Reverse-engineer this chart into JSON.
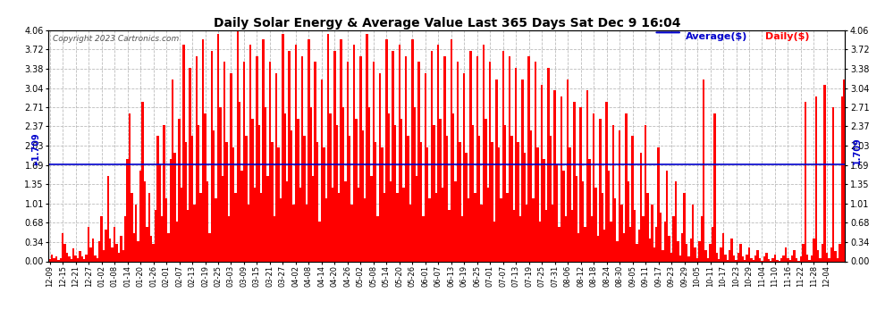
{
  "title": "Daily Solar Energy & Average Value Last 365 Days Sat Dec 9 16:04",
  "copyright": "Copyright 2023 Cartronics.com",
  "average_label": "Average($)",
  "daily_label": "Daily($)",
  "average_value": 1.709,
  "ylim": [
    0.0,
    4.06
  ],
  "yticks": [
    0.0,
    0.34,
    0.68,
    1.01,
    1.35,
    1.69,
    2.03,
    2.37,
    2.71,
    3.04,
    3.38,
    3.72,
    4.06
  ],
  "bar_color": "#ff0000",
  "average_line_color": "#0000cc",
  "background_color": "#ffffff",
  "grid_color": "#bbbbbb",
  "x_labels": [
    "12-09",
    "12-15",
    "12-21",
    "12-27",
    "01-02",
    "01-08",
    "01-14",
    "01-20",
    "01-26",
    "02-01",
    "02-07",
    "02-13",
    "02-19",
    "02-25",
    "03-03",
    "03-09",
    "03-15",
    "03-21",
    "03-27",
    "04-02",
    "04-08",
    "04-14",
    "04-20",
    "04-26",
    "05-02",
    "05-08",
    "05-14",
    "05-20",
    "05-26",
    "06-01",
    "06-07",
    "06-13",
    "06-19",
    "06-25",
    "07-01",
    "07-07",
    "07-13",
    "07-19",
    "07-25",
    "07-31",
    "08-06",
    "08-12",
    "08-18",
    "08-24",
    "08-30",
    "09-05",
    "09-11",
    "09-17",
    "09-23",
    "09-29",
    "10-05",
    "10-11",
    "10-17",
    "10-23",
    "10-29",
    "11-04",
    "11-10",
    "11-16",
    "11-22",
    "11-28",
    "12-04"
  ],
  "x_tick_positions": [
    0,
    6,
    12,
    18,
    24,
    30,
    36,
    42,
    48,
    54,
    60,
    66,
    72,
    78,
    84,
    90,
    96,
    102,
    108,
    114,
    120,
    126,
    132,
    138,
    144,
    150,
    156,
    162,
    168,
    174,
    180,
    186,
    192,
    198,
    204,
    210,
    216,
    222,
    228,
    234,
    240,
    246,
    252,
    258,
    264,
    270,
    276,
    282,
    288,
    294,
    300,
    306,
    312,
    318,
    324,
    330,
    336,
    342,
    348,
    354,
    360
  ],
  "daily_values": [
    0.04,
    0.12,
    0.06,
    0.08,
    0.03,
    0.05,
    0.5,
    0.3,
    0.15,
    0.08,
    0.04,
    0.22,
    0.1,
    0.06,
    0.18,
    0.08,
    0.04,
    0.12,
    0.6,
    0.25,
    0.4,
    0.1,
    0.06,
    0.35,
    0.8,
    0.2,
    0.55,
    1.5,
    0.4,
    0.25,
    0.6,
    0.3,
    0.15,
    0.45,
    0.2,
    0.8,
    1.8,
    2.6,
    1.2,
    0.5,
    1.0,
    0.35,
    1.6,
    2.8,
    1.4,
    0.6,
    1.2,
    0.45,
    0.3,
    0.9,
    2.2,
    1.7,
    0.8,
    2.4,
    1.1,
    0.5,
    1.8,
    3.2,
    1.9,
    0.7,
    2.5,
    1.3,
    3.8,
    2.1,
    0.9,
    3.4,
    2.2,
    1.0,
    3.6,
    2.4,
    1.2,
    3.9,
    2.6,
    1.4,
    0.5,
    3.7,
    2.3,
    1.1,
    4.0,
    2.7,
    1.5,
    3.5,
    2.1,
    0.8,
    3.3,
    2.0,
    1.2,
    4.06,
    2.8,
    1.6,
    3.5,
    2.2,
    1.0,
    3.8,
    2.5,
    1.3,
    3.6,
    2.4,
    1.2,
    3.9,
    2.7,
    1.5,
    3.5,
    2.1,
    0.8,
    3.3,
    2.0,
    1.1,
    4.0,
    2.6,
    1.4,
    3.7,
    2.3,
    1.0,
    3.8,
    2.5,
    1.3,
    3.6,
    2.2,
    1.0,
    3.9,
    2.7,
    1.5,
    3.5,
    2.1,
    0.7,
    3.2,
    2.0,
    1.1,
    4.0,
    2.6,
    1.3,
    3.7,
    2.4,
    1.2,
    3.9,
    2.7,
    1.4,
    3.5,
    2.2,
    1.0,
    3.8,
    2.5,
    1.3,
    3.6,
    2.3,
    1.1,
    4.0,
    2.7,
    1.5,
    3.5,
    2.1,
    0.8,
    3.3,
    2.0,
    1.2,
    3.9,
    2.6,
    1.4,
    3.7,
    2.4,
    1.2,
    3.8,
    2.5,
    1.3,
    3.6,
    2.2,
    1.0,
    3.9,
    2.7,
    1.5,
    3.5,
    2.1,
    0.8,
    3.3,
    2.0,
    1.1,
    3.7,
    2.4,
    1.2,
    3.8,
    2.5,
    1.3,
    3.6,
    2.2,
    0.9,
    3.9,
    2.6,
    1.4,
    3.5,
    2.1,
    0.8,
    3.3,
    1.9,
    1.1,
    3.7,
    2.4,
    1.2,
    3.6,
    2.2,
    1.0,
    3.8,
    2.5,
    1.3,
    3.5,
    2.1,
    0.7,
    3.2,
    2.0,
    1.1,
    3.7,
    2.4,
    1.2,
    3.6,
    2.2,
    0.9,
    3.4,
    2.1,
    0.8,
    3.2,
    1.9,
    1.0,
    3.6,
    2.3,
    1.1,
    3.5,
    2.0,
    0.7,
    3.1,
    1.8,
    0.9,
    3.4,
    2.2,
    1.0,
    3.0,
    1.7,
    0.6,
    2.9,
    1.6,
    0.8,
    3.2,
    2.0,
    0.9,
    2.8,
    1.5,
    0.5,
    2.7,
    1.4,
    0.6,
    3.0,
    1.8,
    0.8,
    2.6,
    1.3,
    0.45,
    2.5,
    1.2,
    0.55,
    2.8,
    1.6,
    0.7,
    2.4,
    1.1,
    0.35,
    2.3,
    1.0,
    0.5,
    2.6,
    1.4,
    0.6,
    2.2,
    0.9,
    0.3,
    0.55,
    1.9,
    0.8,
    2.4,
    1.2,
    0.4,
    1.0,
    0.25,
    0.6,
    2.0,
    0.85,
    0.2,
    0.7,
    1.6,
    0.45,
    0.15,
    0.8,
    1.4,
    0.35,
    0.1,
    0.5,
    1.2,
    0.3,
    0.08,
    0.4,
    1.0,
    0.25,
    0.06,
    0.35,
    0.8,
    3.2,
    0.2,
    0.05,
    0.3,
    0.6,
    2.6,
    0.15,
    0.04,
    0.25,
    0.5,
    0.12,
    0.03,
    0.2,
    0.4,
    0.1,
    0.03,
    0.15,
    0.3,
    0.08,
    0.02,
    0.12,
    0.25,
    0.06,
    0.02,
    0.1,
    0.2,
    0.05,
    0.01,
    0.08,
    0.15,
    0.04,
    0.01,
    0.06,
    0.12,
    0.03,
    0.01,
    0.05,
    0.1,
    0.25,
    0.06,
    0.02,
    0.1,
    0.2,
    0.05,
    0.01,
    0.08,
    0.3,
    2.8,
    0.12,
    0.03,
    0.1,
    0.4,
    2.9,
    0.2,
    0.06,
    0.3,
    3.1,
    0.15,
    0.05,
    0.25,
    2.7,
    0.18,
    0.06,
    0.3,
    2.9,
    3.2
  ]
}
